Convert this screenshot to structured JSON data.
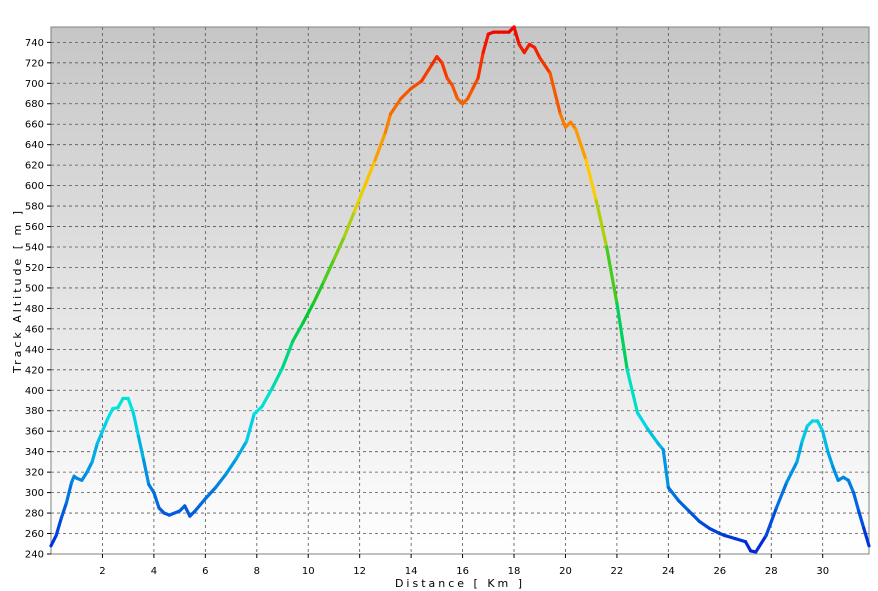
{
  "chart_data": {
    "type": "line",
    "title": "",
    "xlabel": "Distance  [ Km ]",
    "ylabel": "Track  Altitude  [ m ]",
    "xlim": [
      0,
      31.8
    ],
    "ylim": [
      240,
      755
    ],
    "x_ticks": [
      2,
      4,
      6,
      8,
      10,
      12,
      14,
      16,
      18,
      20,
      22,
      24,
      26,
      28,
      30
    ],
    "y_ticks": [
      240,
      260,
      280,
      300,
      320,
      340,
      360,
      380,
      400,
      420,
      440,
      460,
      480,
      500,
      520,
      540,
      560,
      580,
      600,
      620,
      640,
      660,
      680,
      700,
      720,
      740
    ],
    "grid": true,
    "legend": "none",
    "colormap": "altitude: blue (low) to cyan, green, yellow, red (high)",
    "colors": {
      "plot_bg_top": "#c6c6c6",
      "plot_bg_bottom": "#ffffff",
      "grid": "#555555",
      "frame": "#808080"
    },
    "series": [
      {
        "x": [
          0.0,
          0.2,
          0.4,
          0.6,
          0.8,
          0.9,
          1.0,
          1.2,
          1.4,
          1.6,
          1.8,
          2.0,
          2.2,
          2.4,
          2.6,
          2.8,
          3.0,
          3.2,
          3.4,
          3.6,
          3.8,
          4.0,
          4.2,
          4.4,
          4.6,
          4.8,
          5.0,
          5.2,
          5.4,
          5.6,
          5.8,
          6.0,
          6.4,
          6.8,
          7.2,
          7.6,
          7.9,
          8.2,
          8.6,
          9.0,
          9.4,
          9.8,
          10.2,
          10.6,
          11.0,
          11.4,
          11.8,
          12.2,
          12.6,
          13.0,
          13.2,
          13.6,
          14.0,
          14.4,
          14.8,
          15.0,
          15.2,
          15.4,
          15.6,
          15.8,
          16.0,
          16.2,
          16.4,
          16.6,
          16.8,
          17.0,
          17.2,
          17.4,
          17.6,
          17.8,
          18.0,
          18.2,
          18.4,
          18.6,
          18.8,
          19.0,
          19.4,
          19.8,
          20.0,
          20.2,
          20.4,
          20.8,
          21.2,
          21.6,
          22.0,
          22.4,
          22.8,
          23.2,
          23.6,
          23.8,
          24.0,
          24.4,
          24.8,
          25.2,
          25.6,
          26.0,
          26.2,
          26.6,
          27.0,
          27.2,
          27.4,
          27.8,
          28.2,
          28.6,
          29.0,
          29.2,
          29.4,
          29.6,
          29.8,
          30.0,
          30.2,
          30.4,
          30.6,
          30.8,
          31.0,
          31.2,
          31.4,
          31.6,
          31.8
        ],
        "values": [
          248,
          258,
          275,
          290,
          310,
          316,
          314,
          312,
          320,
          330,
          348,
          360,
          372,
          382,
          383,
          392,
          392,
          378,
          355,
          332,
          308,
          300,
          285,
          280,
          278,
          280,
          282,
          287,
          277,
          282,
          288,
          294,
          305,
          318,
          333,
          350,
          377,
          384,
          402,
          422,
          448,
          466,
          485,
          506,
          528,
          550,
          575,
          600,
          625,
          652,
          670,
          685,
          695,
          702,
          718,
          726,
          720,
          705,
          698,
          685,
          680,
          685,
          695,
          705,
          730,
          748,
          750,
          750,
          750,
          750,
          755,
          738,
          730,
          738,
          735,
          725,
          710,
          670,
          657,
          662,
          655,
          625,
          585,
          540,
          485,
          420,
          378,
          362,
          348,
          342,
          305,
          292,
          282,
          272,
          265,
          260,
          258,
          255,
          252,
          243,
          242,
          258,
          285,
          310,
          330,
          350,
          365,
          370,
          370,
          360,
          340,
          325,
          312,
          315,
          312,
          300,
          282,
          265,
          248
        ]
      }
    ]
  }
}
